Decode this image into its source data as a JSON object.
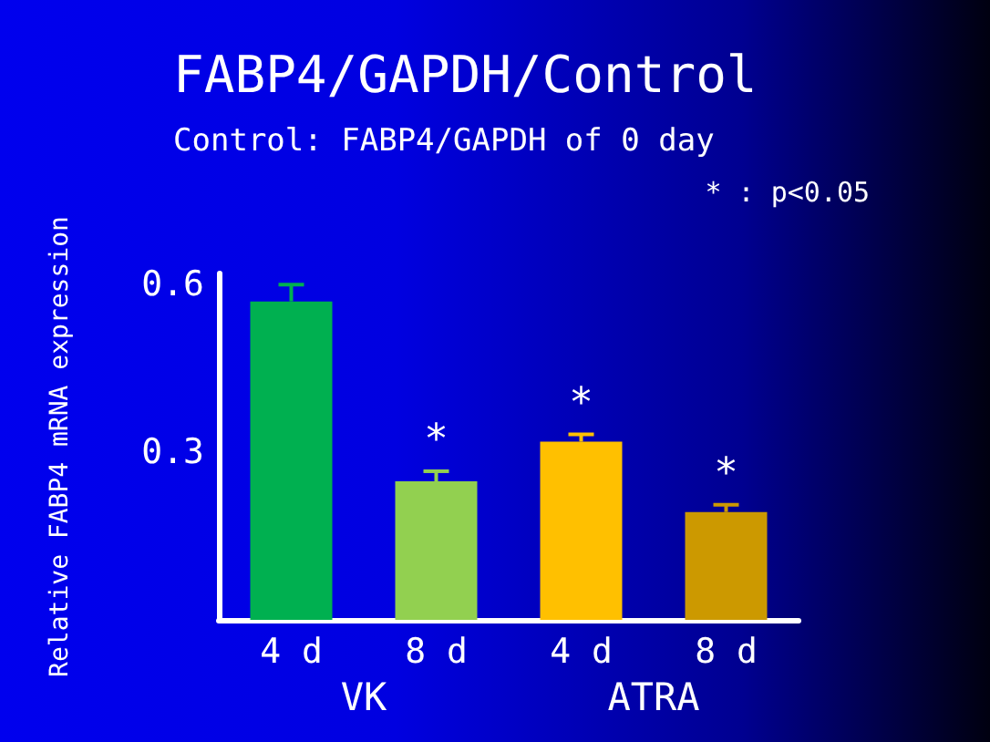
{
  "chart_data": {
    "type": "bar",
    "title": "FABP4/GAPDH/Control",
    "subtitle": "Control: FABP4/GAPDH of 0 day",
    "ylabel": "Relative FABP4 mRNA expression",
    "annotations": [
      "* : p<0.05",
      "VK",
      "ATRA"
    ],
    "categories": [
      "4 d",
      "8 d",
      "4 d",
      "8 d"
    ],
    "values": [
      0.57,
      0.248,
      0.319,
      0.193
    ],
    "colors": [
      "#00b050",
      "#92d050",
      "#ffc000",
      "#cc9900"
    ],
    "errors": [
      0.03,
      0.018,
      0.013,
      0.013
    ],
    "value_labels": [
      null,
      "*",
      "*",
      "*"
    ],
    "ylim": [
      0,
      0.62
    ],
    "yticks": [
      0.3,
      0.6
    ]
  }
}
